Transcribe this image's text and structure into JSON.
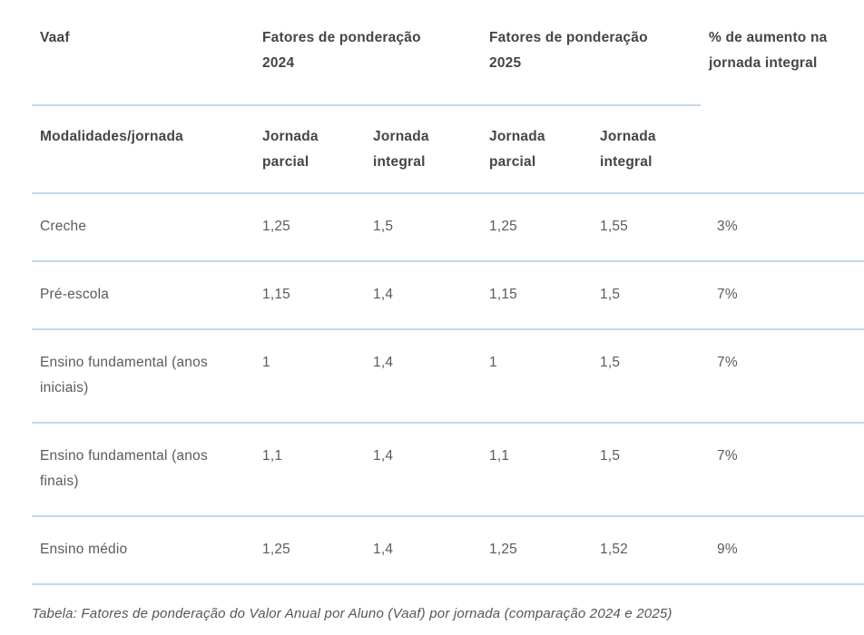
{
  "colors": {
    "divider": "#c4d9e8",
    "header_text": "#434548",
    "body_text": "#595b5e",
    "caption_text": "#54565b",
    "background": "#ffffff"
  },
  "table": {
    "group_header": {
      "vaaf": "Vaaf",
      "fatores_2024_lines": [
        "Fatores de ponderação",
        "2024"
      ],
      "fatores_2025_lines": [
        "Fatores de ponderação",
        "2025"
      ],
      "aumento_lines": [
        "% de aumento na",
        "jornada integral"
      ]
    },
    "sub_header": {
      "modalidades": "Modalidades/jornada",
      "parcial_2024_lines": [
        "Jornada",
        "parcial"
      ],
      "integral_2024_lines": [
        "Jornada",
        "integral"
      ],
      "parcial_2025_lines": [
        "Jornada",
        "parcial"
      ],
      "integral_2025_lines": [
        "Jornada",
        "integral"
      ]
    },
    "rows": [
      {
        "modalidade": "Creche",
        "parcial_2024": "1,25",
        "integral_2024": "1,5",
        "parcial_2025": "1,25",
        "integral_2025": "1,55",
        "aumento": "3%"
      },
      {
        "modalidade": "Pré-escola",
        "parcial_2024": "1,15",
        "integral_2024": "1,4",
        "parcial_2025": "1,15",
        "integral_2025": "1,5",
        "aumento": "7%"
      },
      {
        "modalidade": "Ensino fundamental (anos iniciais)",
        "parcial_2024": "1",
        "integral_2024": "1,4",
        "parcial_2025": "1",
        "integral_2025": "1,5",
        "aumento": "7%"
      },
      {
        "modalidade": "Ensino fundamental (anos finais)",
        "parcial_2024": "1,1",
        "integral_2024": "1,4",
        "parcial_2025": "1,1",
        "integral_2025": "1,5",
        "aumento": "7%"
      },
      {
        "modalidade": "Ensino médio",
        "parcial_2024": "1,25",
        "integral_2024": "1,4",
        "parcial_2025": "1,25",
        "integral_2025": "1,52",
        "aumento": "9%"
      }
    ],
    "caption": "Tabela: Fatores de ponderação do Valor Anual por Aluno (Vaaf) por jornada (comparação 2024 e 2025)"
  }
}
